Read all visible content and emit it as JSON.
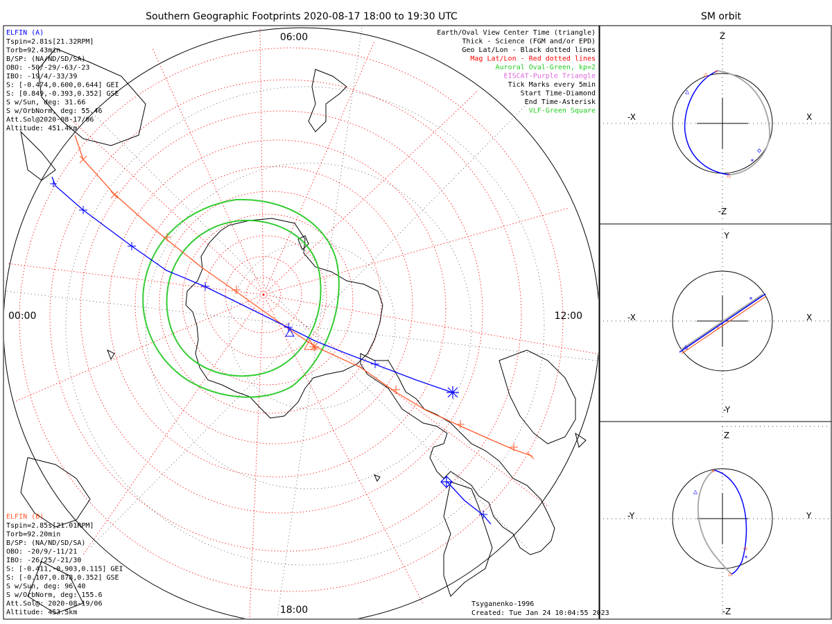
{
  "title": "Southern Geographic Footprints 2020-08-17 18:00 to 19:30 UTC",
  "sm_title": "SM orbit",
  "hour_labels": {
    "top": "06:00",
    "left": "00:00",
    "right": "12:00",
    "bottom": "18:00"
  },
  "elfin_a": {
    "name": "ELFIN (A)",
    "color": "#0000ff",
    "lines": [
      "Tspin=2.81s[21.32RPM]",
      "Torb=92.43min",
      "B/SP: (NA/ND/SD/SA)",
      "OBO: -50/-29/-63/-23",
      "IBO: -19/4/-33/39",
      "S: [-0.474,0.600,0.644] GEI",
      "S: [0.849,-0.393,0.352] GSE",
      "S w/Sun, deg: 31.66",
      "S w/OrbNorm, deg: 55.46",
      "Att.Sol@2020-08-17/06",
      "Altitude: 451.4km"
    ]
  },
  "elfin_b": {
    "name": "ELFIN (B)",
    "color": "#ff5a2a",
    "lines": [
      "Tspin=2.85s[21.01RPM]",
      "Torb=92.20min",
      "B/SP: (NA/ND/SD/SA)",
      "OBO: -20/9/-11/21",
      "IBO: -26/25/-21/30",
      "S: [-0.411,-0.903,0.115] GEI",
      "S: [-0.107,0.878,0.352] GSE",
      "S w/Sun, deg: 96.40",
      "S w/OrbNorm, deg: 155.6",
      "Att.Sol@: 2020-08-19/06",
      "Altitude: 453.5km"
    ]
  },
  "legend": [
    {
      "text": "Earth/Oval View Center Time (triangle)",
      "color": "#000000"
    },
    {
      "text": "Thick - Science (FGM and/or EPD)",
      "color": "#000000"
    },
    {
      "text": "Geo Lat/Lon - Black dotted lines",
      "color": "#000000"
    },
    {
      "text": "Mag Lat/Lon - Red dotted lines",
      "color": "#ff0000"
    },
    {
      "text": "Auroral Oval-Green, kp=2",
      "color": "#22cc22"
    },
    {
      "text": "EISCAT-Purple Triangle",
      "color": "#dd66dd"
    },
    {
      "text": "Tick Marks every 5min",
      "color": "#000000"
    },
    {
      "text": "Start Time-Diamond",
      "color": "#000000"
    },
    {
      "text": "End Time-Asterisk",
      "color": "#000000"
    },
    {
      "text": "VLF-Green Square",
      "color": "#22cc22"
    }
  ],
  "model": "Tsyganenko-1996",
  "created": "Created: Tue Jan 24 10:04:55 2023",
  "colors": {
    "oval": "#33cc33",
    "mag_grid": "#ff0000",
    "geo_grid": "#000000",
    "elfin_a": "#0000ff",
    "elfin_b": "#ff5a2a",
    "projection_gray": "#aaaaaa"
  },
  "sm_panels": [
    {
      "up": "Z",
      "down": "-Z",
      "left": "-X",
      "right": "X"
    },
    {
      "up": "Y",
      "down": "-Y",
      "left": "-X",
      "right": "X"
    },
    {
      "up": "Z",
      "down": "-Z",
      "left": "-Y",
      "right": "Y"
    }
  ]
}
